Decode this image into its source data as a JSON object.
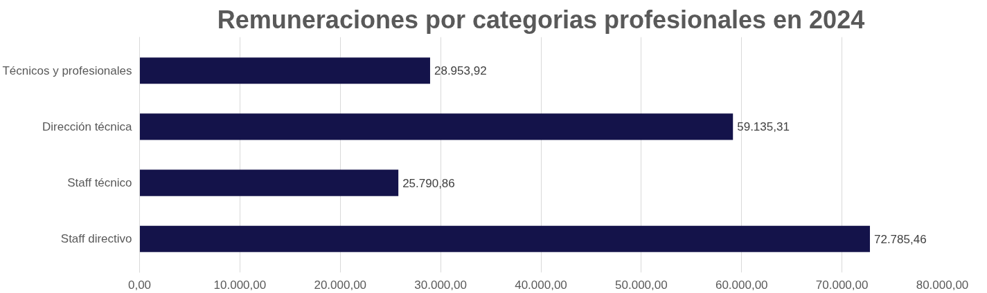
{
  "chart_data": {
    "type": "bar",
    "orientation": "horizontal",
    "title": "Remuneraciones por categorias profesionales en 2024",
    "categories": [
      "Técnicos y profesionales",
      "Dirección técnica",
      "Staff técnico",
      "Staff directivo"
    ],
    "values": [
      28953.92,
      59135.31,
      25790.86,
      72785.46
    ],
    "value_labels": [
      "28.953,92",
      "59.135,31",
      "25.790,86",
      "72.785,46"
    ],
    "color": "#14134a",
    "xlim": [
      0,
      80000
    ],
    "xticks": [
      {
        "value": 0,
        "label": "0,00"
      },
      {
        "value": 10000,
        "label": "10.000,00"
      },
      {
        "value": 20000,
        "label": "20.000,00"
      },
      {
        "value": 30000,
        "label": "30.000,00"
      },
      {
        "value": 40000,
        "label": "40.000,00"
      },
      {
        "value": 50000,
        "label": "50.000,00"
      },
      {
        "value": 60000,
        "label": "60.000,00"
      },
      {
        "value": 70000,
        "label": "70.000,00"
      },
      {
        "value": 80000,
        "label": "80.000,00"
      }
    ],
    "grid": "x"
  }
}
